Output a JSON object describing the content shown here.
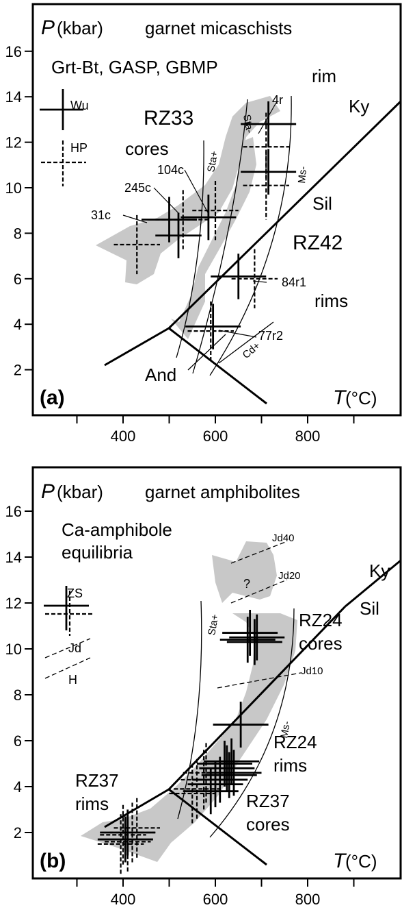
{
  "chart_data": [
    {
      "panel": "(a)",
      "type": "scatter",
      "title": "garnet micaschists",
      "ylabel_symbol": "P",
      "ylabel_unit": "(kbar)",
      "xlabel_symbol": "T",
      "xlabel_unit": "(°C)",
      "xlim": [
        220,
        990
      ],
      "ylim": [
        0,
        17.5
      ],
      "xticks": [
        400,
        600,
        800
      ],
      "yticks": [
        2,
        4,
        6,
        8,
        10,
        12,
        14,
        16
      ],
      "method_text": "Grt-Bt, GASP, GBMP",
      "legend": [
        {
          "label": "Wu",
          "style": "solid"
        },
        {
          "label": "HP",
          "style": "dashed"
        }
      ],
      "sample_labels": [
        "RZ33",
        "cores",
        "RZ42",
        "rims"
      ],
      "point_labels": [
        "31c",
        "245c",
        "104c",
        "4r",
        "84r1",
        "77r2"
      ],
      "reaction_labels": [
        "Sta+",
        "Sta-",
        "Ms-",
        "Cd+",
        "Ky",
        "Sil",
        "And",
        "rim"
      ],
      "points": [
        {
          "name": "31c",
          "method": "Wu",
          "x": 500,
          "y": 8.6,
          "dx": 60,
          "dy": 1.0
        },
        {
          "name": "31c",
          "method": "HP",
          "x": 430,
          "y": 7.5,
          "dx": 50,
          "dy": 1.3
        },
        {
          "name": "245c",
          "method": "Wu",
          "x": 520,
          "y": 7.9,
          "dx": 50,
          "dy": 1.0
        },
        {
          "name": "245c",
          "method": "HP",
          "x": 530,
          "y": 8.6,
          "dx": 60,
          "dy": 1.3
        },
        {
          "name": "104c",
          "method": "Wu",
          "x": 585,
          "y": 8.7,
          "dx": 60,
          "dy": 1.0
        },
        {
          "name": "104c",
          "method": "HP",
          "x": 600,
          "y": 9.0,
          "dx": 50,
          "dy": 1.3
        },
        {
          "name": "4r",
          "method": "Wu",
          "x": 715,
          "y": 12.8,
          "dx": 60,
          "dy": 1.0
        },
        {
          "name": "4r",
          "method": "HP",
          "x": 710,
          "y": 11.8,
          "dx": 50,
          "dy": 1.5
        },
        {
          "name": "4r",
          "method": "Wu",
          "x": 715,
          "y": 10.7,
          "dx": 60,
          "dy": 1.0
        },
        {
          "name": "4r",
          "method": "HP",
          "x": 710,
          "y": 10.1,
          "dx": 50,
          "dy": 1.5
        },
        {
          "name": "84r1",
          "method": "Wu",
          "x": 650,
          "y": 6.1,
          "dx": 60,
          "dy": 1.0
        },
        {
          "name": "84r1",
          "method": "HP",
          "x": 685,
          "y": 6.0,
          "dx": 50,
          "dy": 1.3
        },
        {
          "name": "77r2",
          "method": "Wu",
          "x": 595,
          "y": 3.9,
          "dx": 60,
          "dy": 1.0
        },
        {
          "name": "77r2",
          "method": "HP",
          "x": 590,
          "y": 3.7,
          "dx": 50,
          "dy": 1.3
        }
      ]
    },
    {
      "panel": "(b)",
      "type": "scatter",
      "title": "garnet amphibolites",
      "ylabel_symbol": "P",
      "ylabel_unit": "(kbar)",
      "xlabel_symbol": "T",
      "xlabel_unit": "(°C)",
      "xlim": [
        220,
        990
      ],
      "ylim": [
        0,
        17.5
      ],
      "xticks": [
        400,
        600,
        800
      ],
      "yticks": [
        2,
        4,
        6,
        8,
        10,
        12,
        14,
        16
      ],
      "method_text_1": "Ca-amphibole",
      "method_text_2": "equilibria",
      "legend": [
        {
          "label": "ZS",
          "style": "solid"
        },
        {
          "label": "Jd",
          "style": "dashed"
        },
        {
          "label": "H",
          "style": "dashed"
        }
      ],
      "sample_labels": [
        "RZ24",
        "cores",
        "RZ24",
        "rims",
        "RZ37",
        "cores",
        "RZ37",
        "rims"
      ],
      "reaction_labels": [
        "Sta+",
        "Ms-",
        "Ky",
        "Sil",
        "Jd40",
        "Jd20",
        "Jd10",
        "?"
      ],
      "points": [
        {
          "method": "ZS",
          "x": 670,
          "y": 10.4,
          "dx": 60,
          "dy": 1.0
        },
        {
          "method": "ZS",
          "x": 690,
          "y": 10.5,
          "dx": 60,
          "dy": 1.0
        },
        {
          "method": "ZS",
          "x": 675,
          "y": 10.7,
          "dx": 60,
          "dy": 1.0
        },
        {
          "method": "ZS",
          "x": 685,
          "y": 10.3,
          "dx": 60,
          "dy": 1.0
        },
        {
          "method": "ZS",
          "x": 655,
          "y": 6.7,
          "dx": 60,
          "dy": 1.0
        },
        {
          "method": "ZS",
          "x": 620,
          "y": 5.0,
          "dx": 60,
          "dy": 1.0
        },
        {
          "method": "ZS",
          "x": 625,
          "y": 4.8,
          "dx": 60,
          "dy": 1.0
        },
        {
          "method": "ZS",
          "x": 630,
          "y": 4.5,
          "dx": 60,
          "dy": 1.0
        },
        {
          "method": "ZS",
          "x": 635,
          "y": 5.1,
          "dx": 60,
          "dy": 1.0
        },
        {
          "method": "ZS",
          "x": 610,
          "y": 4.3,
          "dx": 60,
          "dy": 1.0
        },
        {
          "method": "ZS",
          "x": 640,
          "y": 4.6,
          "dx": 60,
          "dy": 1.0
        },
        {
          "method": "ZS",
          "x": 600,
          "y": 4.1,
          "dx": 60,
          "dy": 1.0
        },
        {
          "method": "ZS",
          "x": 590,
          "y": 3.8,
          "dx": 60,
          "dy": 1.0
        },
        {
          "method": "Jd",
          "x": 560,
          "y": 3.9,
          "dx": 50,
          "dy": 1.3
        },
        {
          "method": "Jd",
          "x": 575,
          "y": 4.3,
          "dx": 50,
          "dy": 1.3
        },
        {
          "method": "Jd",
          "x": 580,
          "y": 4.6,
          "dx": 50,
          "dy": 1.3
        },
        {
          "method": "Jd",
          "x": 550,
          "y": 3.7,
          "dx": 50,
          "dy": 1.3
        },
        {
          "method": "Jd",
          "x": 420,
          "y": 2.0,
          "dx": 50,
          "dy": 1.3
        },
        {
          "method": "Jd",
          "x": 410,
          "y": 1.6,
          "dx": 50,
          "dy": 1.3
        },
        {
          "method": "Jd",
          "x": 400,
          "y": 1.9,
          "dx": 50,
          "dy": 1.3
        },
        {
          "method": "Jd",
          "x": 430,
          "y": 2.2,
          "dx": 50,
          "dy": 1.3
        },
        {
          "method": "Jd",
          "x": 395,
          "y": 1.5,
          "dx": 50,
          "dy": 1.3
        },
        {
          "method": "ZS",
          "x": 410,
          "y": 2.0,
          "dx": 60,
          "dy": 1.0
        },
        {
          "method": "ZS",
          "x": 405,
          "y": 1.7,
          "dx": 60,
          "dy": 1.0
        }
      ]
    }
  ]
}
